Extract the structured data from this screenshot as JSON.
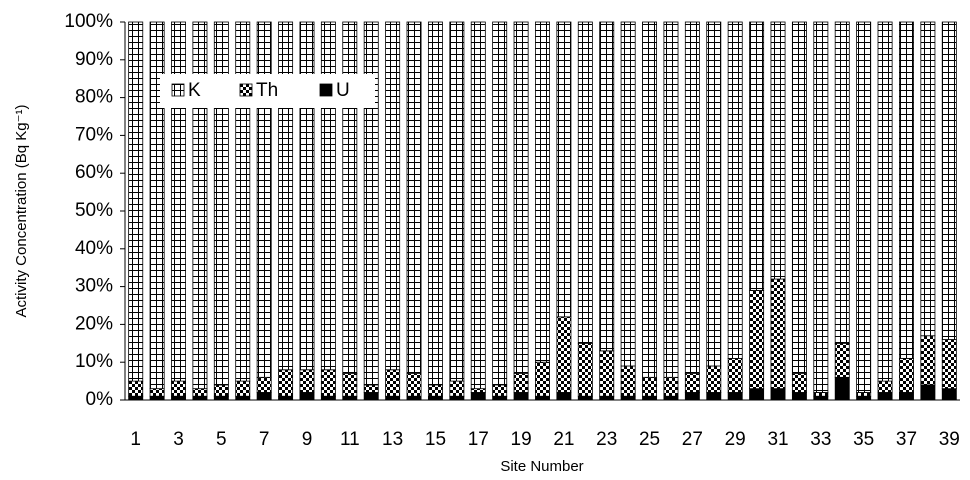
{
  "chart_data": {
    "type": "stacked_percent_bar",
    "y_label": "Activity Concentration (Bq Kg⁻¹)",
    "x_label": "Site Number",
    "categories": [
      "1",
      null,
      "3",
      null,
      "5",
      null,
      "7",
      null,
      "9",
      null,
      "11",
      null,
      "13",
      null,
      "15",
      null,
      "17",
      null,
      "19",
      null,
      "21",
      null,
      "23",
      null,
      "25",
      null,
      "27",
      null,
      "29",
      null,
      "31",
      null,
      "33",
      null,
      "35",
      null,
      "37",
      null,
      "39"
    ],
    "series": [
      {
        "name": "K",
        "color": "#000000",
        "pattern": "grid",
        "values": [
          95,
          97,
          95,
          97,
          96,
          95,
          94,
          92,
          92,
          92,
          93,
          96,
          92,
          93,
          96,
          95,
          97,
          96,
          93,
          90,
          78,
          85,
          87,
          91,
          94,
          94,
          93,
          91,
          89,
          71,
          68,
          93,
          98,
          85,
          98,
          95,
          89,
          83,
          84
        ]
      },
      {
        "name": "Th",
        "color": "#000000",
        "pattern": "checker",
        "values": [
          4,
          2,
          4,
          2,
          3,
          4,
          4,
          7,
          6,
          7,
          6,
          2,
          7,
          6,
          3,
          4,
          1,
          3,
          5,
          9,
          20,
          14,
          12,
          8,
          5,
          5,
          5,
          7,
          9,
          26,
          29,
          5,
          1,
          9,
          1,
          3,
          9,
          13,
          13
        ]
      },
      {
        "name": "U",
        "color": "#000000",
        "pattern": "solid",
        "values": [
          1,
          1,
          1,
          1,
          1,
          1,
          2,
          1,
          2,
          1,
          1,
          2,
          1,
          1,
          1,
          1,
          2,
          1,
          2,
          1,
          2,
          1,
          1,
          1,
          1,
          1,
          2,
          2,
          2,
          3,
          3,
          2,
          1,
          6,
          1,
          2,
          2,
          4,
          3
        ]
      }
    ],
    "ylim": [
      0,
      100
    ],
    "yticks": [
      {
        "value": 0,
        "label": "0%"
      },
      {
        "value": 10,
        "label": "10%"
      },
      {
        "value": 20,
        "label": "20%"
      },
      {
        "value": 30,
        "label": "30%"
      },
      {
        "value": 40,
        "label": "40%"
      },
      {
        "value": 50,
        "label": "50%"
      },
      {
        "value": 60,
        "label": "60%"
      },
      {
        "value": 70,
        "label": "70%"
      },
      {
        "value": 80,
        "label": "80%"
      },
      {
        "value": 90,
        "label": "90%"
      },
      {
        "value": 100,
        "label": "100%"
      }
    ],
    "grid": false
  }
}
